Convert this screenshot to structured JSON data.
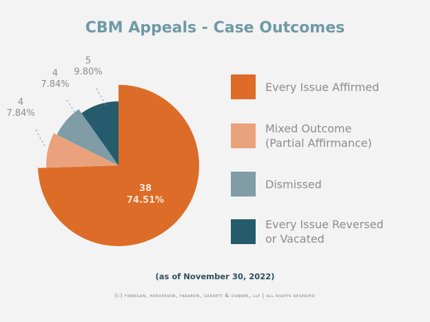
{
  "chart_data": {
    "type": "pie",
    "title": "CBM Appeals - Case Outcomes",
    "slices": [
      {
        "name": "Every Issue Affirmed",
        "value": 38,
        "percent": "74.51%",
        "color": "#dc6c27"
      },
      {
        "name": "Mixed Outcome\n(Partial Affirmance)",
        "value": 4,
        "percent": "7.84%",
        "color": "#eaa27c"
      },
      {
        "name": "Dismissed",
        "value": 4,
        "percent": "7.84%",
        "color": "#7f9ca7"
      },
      {
        "name": "Every Issue Reversed\nor Vacated",
        "value": 5,
        "percent": "9.80%",
        "color": "#255b6c"
      }
    ],
    "legend_placement": "right",
    "note": "(as of November 30, 2022)"
  },
  "copyright": "(c) Finnegan, Henderson, Farabow, Garrett & Dunner, LLP | All Rights Reserved"
}
